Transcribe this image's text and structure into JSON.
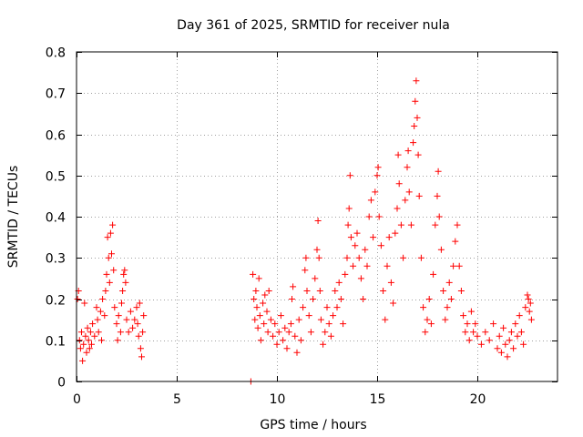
{
  "chart_data": {
    "type": "scatter",
    "title": "Day 361 of 2025, SRMTID for receiver nula",
    "xlabel": "GPS time / hours",
    "ylabel": "SRMTID / TECUs",
    "xlim": [
      0,
      24
    ],
    "ylim": [
      0,
      0.8
    ],
    "x_ticks": [
      0,
      5,
      10,
      15,
      20
    ],
    "x_tick_labels": [
      "0",
      "5",
      "10",
      "15",
      "20"
    ],
    "y_ticks": [
      0,
      0.1,
      0.2,
      0.3,
      0.4,
      0.5,
      0.6,
      0.7,
      0.8
    ],
    "y_tick_labels": [
      "0",
      "0.1",
      "0.2",
      "0.3",
      "0.4",
      "0.5",
      "0.6",
      "0.7",
      "0.8"
    ],
    "grid": true,
    "marker": "plus",
    "color": "#ff0000",
    "series": [
      {
        "name": "SRMTID",
        "points": [
          [
            0.05,
            0.2
          ],
          [
            0.1,
            0.22
          ],
          [
            0.15,
            0.1
          ],
          [
            0.2,
            0.08
          ],
          [
            0.25,
            0.12
          ],
          [
            0.3,
            0.05
          ],
          [
            0.35,
            0.09
          ],
          [
            0.4,
            0.19
          ],
          [
            0.45,
            0.11
          ],
          [
            0.5,
            0.07
          ],
          [
            0.55,
            0.13
          ],
          [
            0.6,
            0.1
          ],
          [
            0.65,
            0.08
          ],
          [
            0.7,
            0.12
          ],
          [
            0.75,
            0.09
          ],
          [
            0.8,
            0.14
          ],
          [
            0.9,
            0.11
          ],
          [
            1.0,
            0.18
          ],
          [
            1.05,
            0.15
          ],
          [
            1.1,
            0.12
          ],
          [
            1.2,
            0.17
          ],
          [
            1.25,
            0.1
          ],
          [
            1.3,
            0.2
          ],
          [
            1.4,
            0.16
          ],
          [
            1.45,
            0.22
          ],
          [
            1.5,
            0.26
          ],
          [
            1.55,
            0.35
          ],
          [
            1.6,
            0.3
          ],
          [
            1.65,
            0.24
          ],
          [
            1.7,
            0.36
          ],
          [
            1.75,
            0.31
          ],
          [
            1.8,
            0.38
          ],
          [
            1.85,
            0.27
          ],
          [
            1.9,
            0.18
          ],
          [
            2.0,
            0.14
          ],
          [
            2.05,
            0.1
          ],
          [
            2.1,
            0.16
          ],
          [
            2.2,
            0.12
          ],
          [
            2.25,
            0.19
          ],
          [
            2.3,
            0.22
          ],
          [
            2.35,
            0.26
          ],
          [
            2.4,
            0.27
          ],
          [
            2.45,
            0.24
          ],
          [
            2.5,
            0.15
          ],
          [
            2.6,
            0.12
          ],
          [
            2.7,
            0.17
          ],
          [
            2.8,
            0.13
          ],
          [
            2.9,
            0.15
          ],
          [
            3.0,
            0.18
          ],
          [
            3.05,
            0.14
          ],
          [
            3.1,
            0.11
          ],
          [
            3.15,
            0.19
          ],
          [
            3.2,
            0.08
          ],
          [
            3.25,
            0.06
          ],
          [
            3.3,
            0.12
          ],
          [
            3.35,
            0.16
          ],
          [
            8.7,
            0.0
          ],
          [
            8.8,
            0.26
          ],
          [
            8.85,
            0.2
          ],
          [
            8.9,
            0.15
          ],
          [
            8.95,
            0.22
          ],
          [
            9.0,
            0.18
          ],
          [
            9.05,
            0.13
          ],
          [
            9.1,
            0.25
          ],
          [
            9.15,
            0.16
          ],
          [
            9.2,
            0.1
          ],
          [
            9.3,
            0.19
          ],
          [
            9.35,
            0.14
          ],
          [
            9.4,
            0.21
          ],
          [
            9.5,
            0.17
          ],
          [
            9.55,
            0.12
          ],
          [
            9.6,
            0.22
          ],
          [
            9.7,
            0.15
          ],
          [
            9.8,
            0.11
          ],
          [
            9.9,
            0.14
          ],
          [
            10.0,
            0.09
          ],
          [
            10.1,
            0.12
          ],
          [
            10.2,
            0.16
          ],
          [
            10.3,
            0.1
          ],
          [
            10.4,
            0.13
          ],
          [
            10.5,
            0.08
          ],
          [
            10.6,
            0.12
          ],
          [
            10.7,
            0.14
          ],
          [
            10.75,
            0.2
          ],
          [
            10.8,
            0.23
          ],
          [
            10.9,
            0.11
          ],
          [
            11.0,
            0.07
          ],
          [
            11.1,
            0.15
          ],
          [
            11.2,
            0.1
          ],
          [
            11.3,
            0.18
          ],
          [
            11.4,
            0.27
          ],
          [
            11.45,
            0.3
          ],
          [
            11.5,
            0.22
          ],
          [
            11.6,
            0.16
          ],
          [
            11.7,
            0.12
          ],
          [
            11.8,
            0.2
          ],
          [
            11.9,
            0.25
          ],
          [
            12.0,
            0.32
          ],
          [
            12.05,
            0.39
          ],
          [
            12.1,
            0.3
          ],
          [
            12.15,
            0.22
          ],
          [
            12.2,
            0.15
          ],
          [
            12.3,
            0.09
          ],
          [
            12.4,
            0.12
          ],
          [
            12.5,
            0.18
          ],
          [
            12.6,
            0.14
          ],
          [
            12.7,
            0.11
          ],
          [
            12.8,
            0.16
          ],
          [
            12.9,
            0.22
          ],
          [
            13.0,
            0.18
          ],
          [
            13.1,
            0.24
          ],
          [
            13.2,
            0.2
          ],
          [
            13.3,
            0.14
          ],
          [
            13.4,
            0.26
          ],
          [
            13.5,
            0.3
          ],
          [
            13.55,
            0.38
          ],
          [
            13.6,
            0.42
          ],
          [
            13.65,
            0.5
          ],
          [
            13.7,
            0.35
          ],
          [
            13.8,
            0.28
          ],
          [
            13.9,
            0.33
          ],
          [
            14.0,
            0.36
          ],
          [
            14.1,
            0.3
          ],
          [
            14.2,
            0.25
          ],
          [
            14.3,
            0.2
          ],
          [
            14.4,
            0.32
          ],
          [
            14.5,
            0.28
          ],
          [
            14.6,
            0.4
          ],
          [
            14.7,
            0.44
          ],
          [
            14.8,
            0.35
          ],
          [
            14.9,
            0.46
          ],
          [
            15.0,
            0.5
          ],
          [
            15.05,
            0.52
          ],
          [
            15.1,
            0.4
          ],
          [
            15.2,
            0.33
          ],
          [
            15.3,
            0.22
          ],
          [
            15.4,
            0.15
          ],
          [
            15.5,
            0.28
          ],
          [
            15.6,
            0.35
          ],
          [
            15.7,
            0.24
          ],
          [
            15.8,
            0.19
          ],
          [
            15.9,
            0.36
          ],
          [
            16.0,
            0.42
          ],
          [
            16.05,
            0.55
          ],
          [
            16.1,
            0.48
          ],
          [
            16.2,
            0.38
          ],
          [
            16.3,
            0.3
          ],
          [
            16.4,
            0.44
          ],
          [
            16.5,
            0.52
          ],
          [
            16.55,
            0.56
          ],
          [
            16.6,
            0.46
          ],
          [
            16.7,
            0.38
          ],
          [
            16.8,
            0.58
          ],
          [
            16.85,
            0.62
          ],
          [
            16.9,
            0.68
          ],
          [
            16.95,
            0.73
          ],
          [
            17.0,
            0.64
          ],
          [
            17.05,
            0.55
          ],
          [
            17.1,
            0.45
          ],
          [
            17.2,
            0.3
          ],
          [
            17.3,
            0.18
          ],
          [
            17.4,
            0.12
          ],
          [
            17.5,
            0.15
          ],
          [
            17.6,
            0.2
          ],
          [
            17.7,
            0.14
          ],
          [
            17.8,
            0.26
          ],
          [
            17.9,
            0.38
          ],
          [
            18.0,
            0.45
          ],
          [
            18.05,
            0.51
          ],
          [
            18.1,
            0.4
          ],
          [
            18.2,
            0.32
          ],
          [
            18.3,
            0.22
          ],
          [
            18.4,
            0.15
          ],
          [
            18.5,
            0.18
          ],
          [
            18.6,
            0.24
          ],
          [
            18.7,
            0.2
          ],
          [
            18.8,
            0.28
          ],
          [
            18.9,
            0.34
          ],
          [
            19.0,
            0.38
          ],
          [
            19.1,
            0.28
          ],
          [
            19.2,
            0.22
          ],
          [
            19.3,
            0.16
          ],
          [
            19.4,
            0.12
          ],
          [
            19.5,
            0.14
          ],
          [
            19.6,
            0.1
          ],
          [
            19.7,
            0.17
          ],
          [
            19.8,
            0.12
          ],
          [
            19.9,
            0.14
          ],
          [
            20.0,
            0.11
          ],
          [
            20.2,
            0.09
          ],
          [
            20.4,
            0.12
          ],
          [
            20.6,
            0.1
          ],
          [
            20.8,
            0.14
          ],
          [
            21.0,
            0.08
          ],
          [
            21.1,
            0.11
          ],
          [
            21.2,
            0.07
          ],
          [
            21.3,
            0.13
          ],
          [
            21.4,
            0.09
          ],
          [
            21.5,
            0.06
          ],
          [
            21.6,
            0.1
          ],
          [
            21.7,
            0.12
          ],
          [
            21.8,
            0.08
          ],
          [
            21.9,
            0.14
          ],
          [
            22.0,
            0.11
          ],
          [
            22.1,
            0.16
          ],
          [
            22.2,
            0.12
          ],
          [
            22.3,
            0.09
          ],
          [
            22.4,
            0.18
          ],
          [
            22.5,
            0.21
          ],
          [
            22.55,
            0.2
          ],
          [
            22.6,
            0.17
          ],
          [
            22.65,
            0.19
          ],
          [
            22.7,
            0.15
          ]
        ]
      }
    ]
  }
}
